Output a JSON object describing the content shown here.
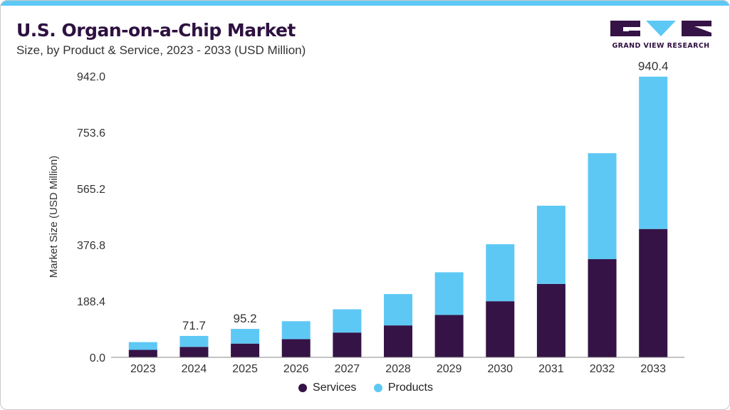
{
  "header": {
    "title": "U.S. Organ-on-a-Chip Market",
    "subtitle": "Size, by Product & Service, 2023 - 2033 (USD Million)"
  },
  "brand": {
    "logo_text": "GRAND VIEW RESEARCH",
    "logo_icon": "gvr-logo"
  },
  "colors": {
    "accent_bar": "#5ec8f5",
    "title": "#2e1140",
    "services": "#351346",
    "products": "#5ec8f5",
    "axis_text": "#333333"
  },
  "chart_data": {
    "type": "bar",
    "stacked": true,
    "categories": [
      "2023",
      "2024",
      "2025",
      "2026",
      "2027",
      "2028",
      "2029",
      "2030",
      "2031",
      "2032",
      "2033"
    ],
    "series": [
      {
        "name": "Services",
        "values": [
          25,
          35,
          46,
          61,
          83,
          107,
          142,
          188,
          246,
          329,
          430
        ]
      },
      {
        "name": "Products",
        "values": [
          26,
          36.7,
          49.2,
          60,
          78,
          105,
          143,
          191,
          262,
          355,
          510.4
        ]
      }
    ],
    "data_labels": [
      {
        "index": 1,
        "text": "71.7"
      },
      {
        "index": 2,
        "text": "95.2"
      },
      {
        "index": 10,
        "text": "940.4"
      }
    ],
    "ylabel": "Market Size (USD Million)",
    "xlabel": "",
    "yticks": [
      "0.0",
      "188.4",
      "376.8",
      "565.2",
      "753.6",
      "942.0"
    ],
    "ylim": [
      0,
      942
    ],
    "grid": false,
    "legend_position": "bottom"
  }
}
